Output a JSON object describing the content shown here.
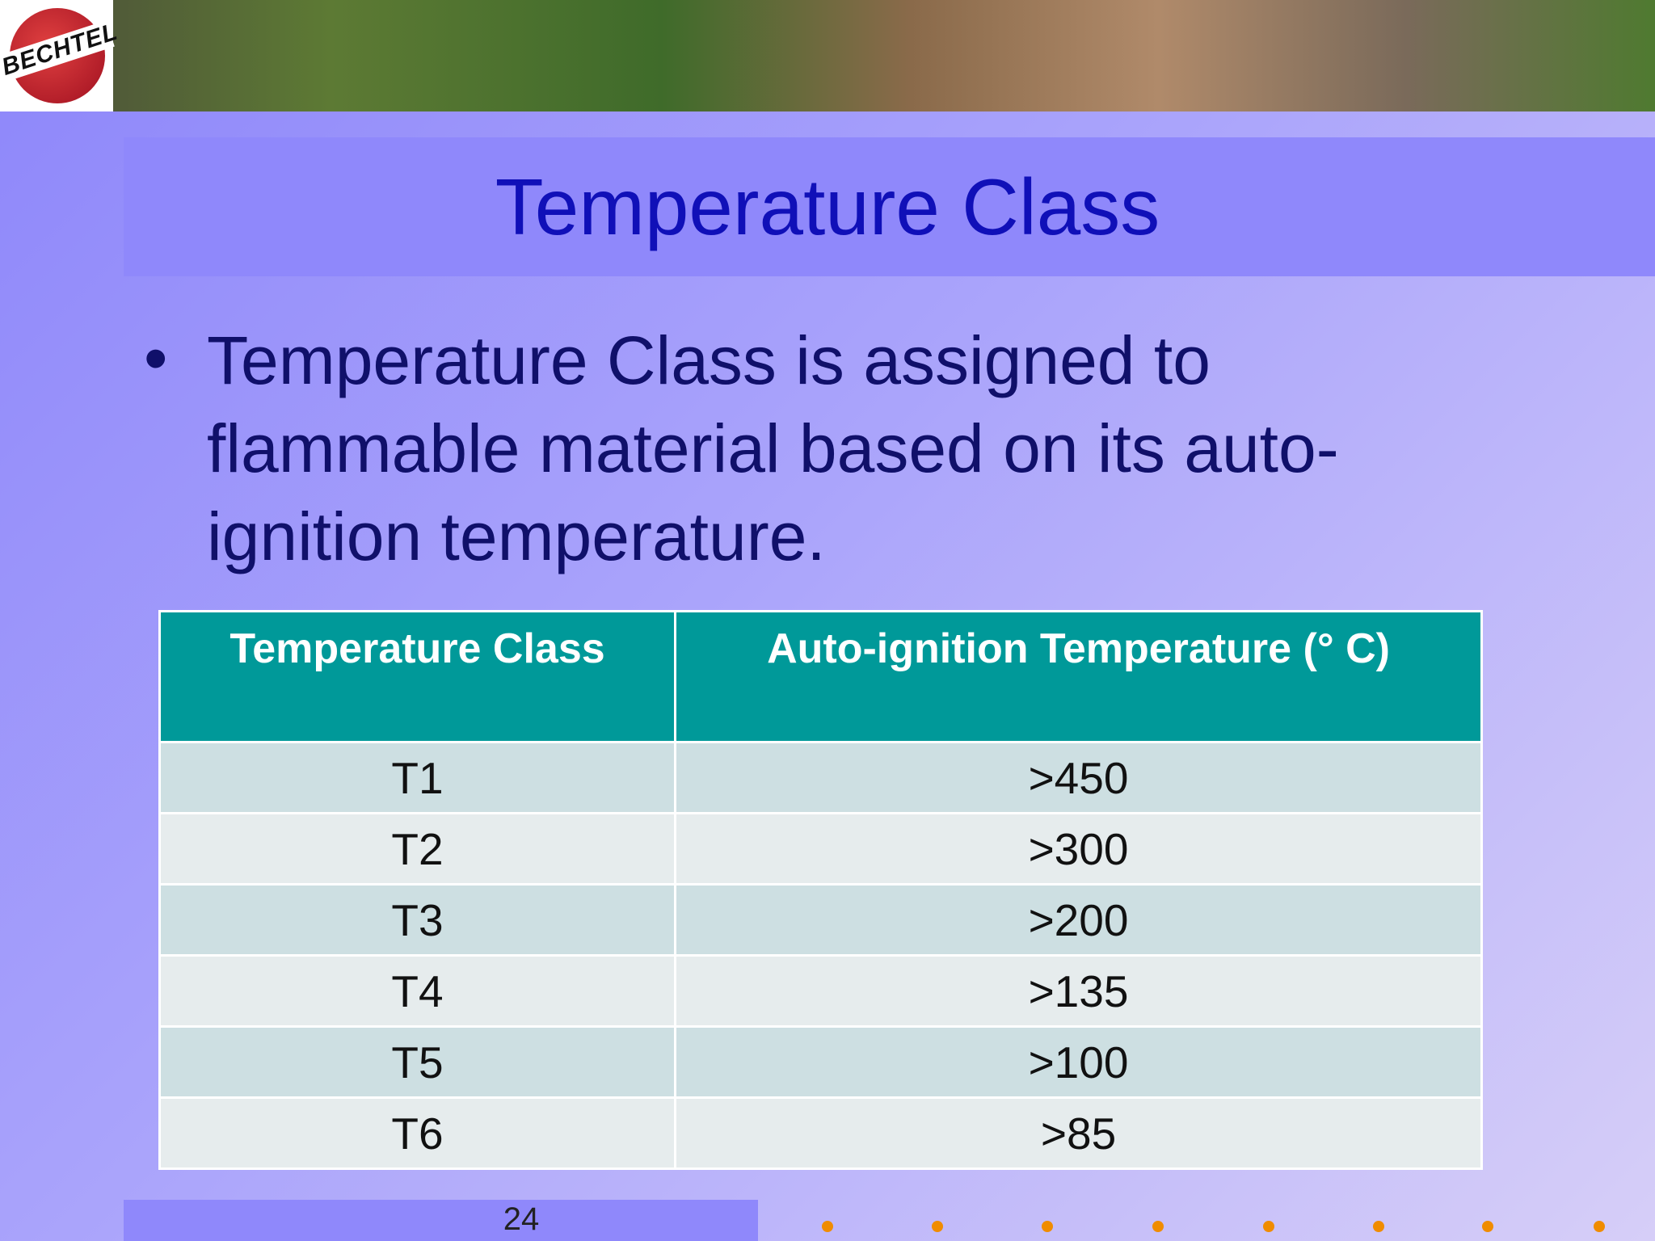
{
  "header": {
    "logo": "BECHTEL"
  },
  "title": "Temperature Class",
  "bullets": [
    "Temperature Class is assigned to flammable material based on its auto-ignition temperature."
  ],
  "table": {
    "header": [
      "Temperature Class",
      "Auto-ignition Temperature (° C)"
    ],
    "rows": [
      [
        "T1",
        ">450"
      ],
      [
        "T2",
        ">300"
      ],
      [
        "T3",
        ">200"
      ],
      [
        "T4",
        ">135"
      ],
      [
        "T5",
        ">100"
      ],
      [
        "T6",
        ">85"
      ]
    ]
  },
  "footer": {
    "page": "24"
  }
}
